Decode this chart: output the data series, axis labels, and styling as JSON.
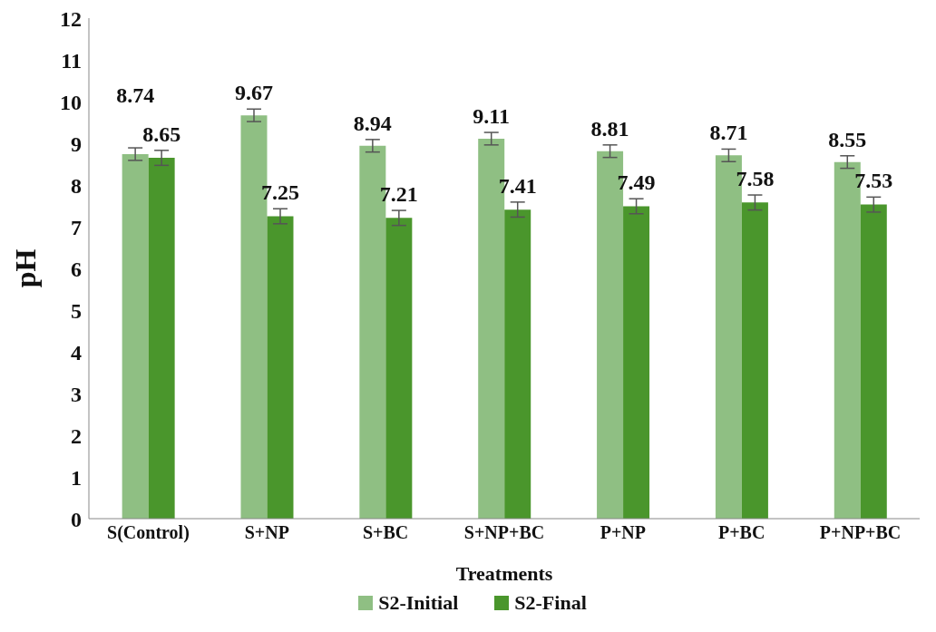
{
  "chart_data": {
    "type": "bar",
    "xlabel": "Treatments",
    "ylabel": "pH",
    "categories": [
      "S(Control)",
      "S+NP",
      "S+BC",
      "S+NP+BC",
      "P+NP",
      "P+BC",
      "P+NP+BC"
    ],
    "series": [
      {
        "name": "S2-Initial",
        "color": "#8fbf83",
        "values": [
          8.74,
          9.67,
          8.94,
          9.11,
          8.81,
          8.71,
          8.55
        ],
        "errors": [
          0.15,
          0.15,
          0.15,
          0.15,
          0.15,
          0.15,
          0.15
        ]
      },
      {
        "name": "S2-Final",
        "color": "#4a962c",
        "values": [
          8.65,
          7.25,
          7.21,
          7.41,
          7.49,
          7.58,
          7.53
        ],
        "errors": [
          0.18,
          0.18,
          0.18,
          0.18,
          0.18,
          0.18,
          0.18
        ]
      }
    ],
    "ylim": [
      0,
      12
    ],
    "yticks": [
      0,
      1,
      2,
      3,
      4,
      5,
      6,
      7,
      8,
      9,
      10,
      11,
      12
    ],
    "grid": false,
    "legend": "bottom",
    "data_labels": true
  }
}
